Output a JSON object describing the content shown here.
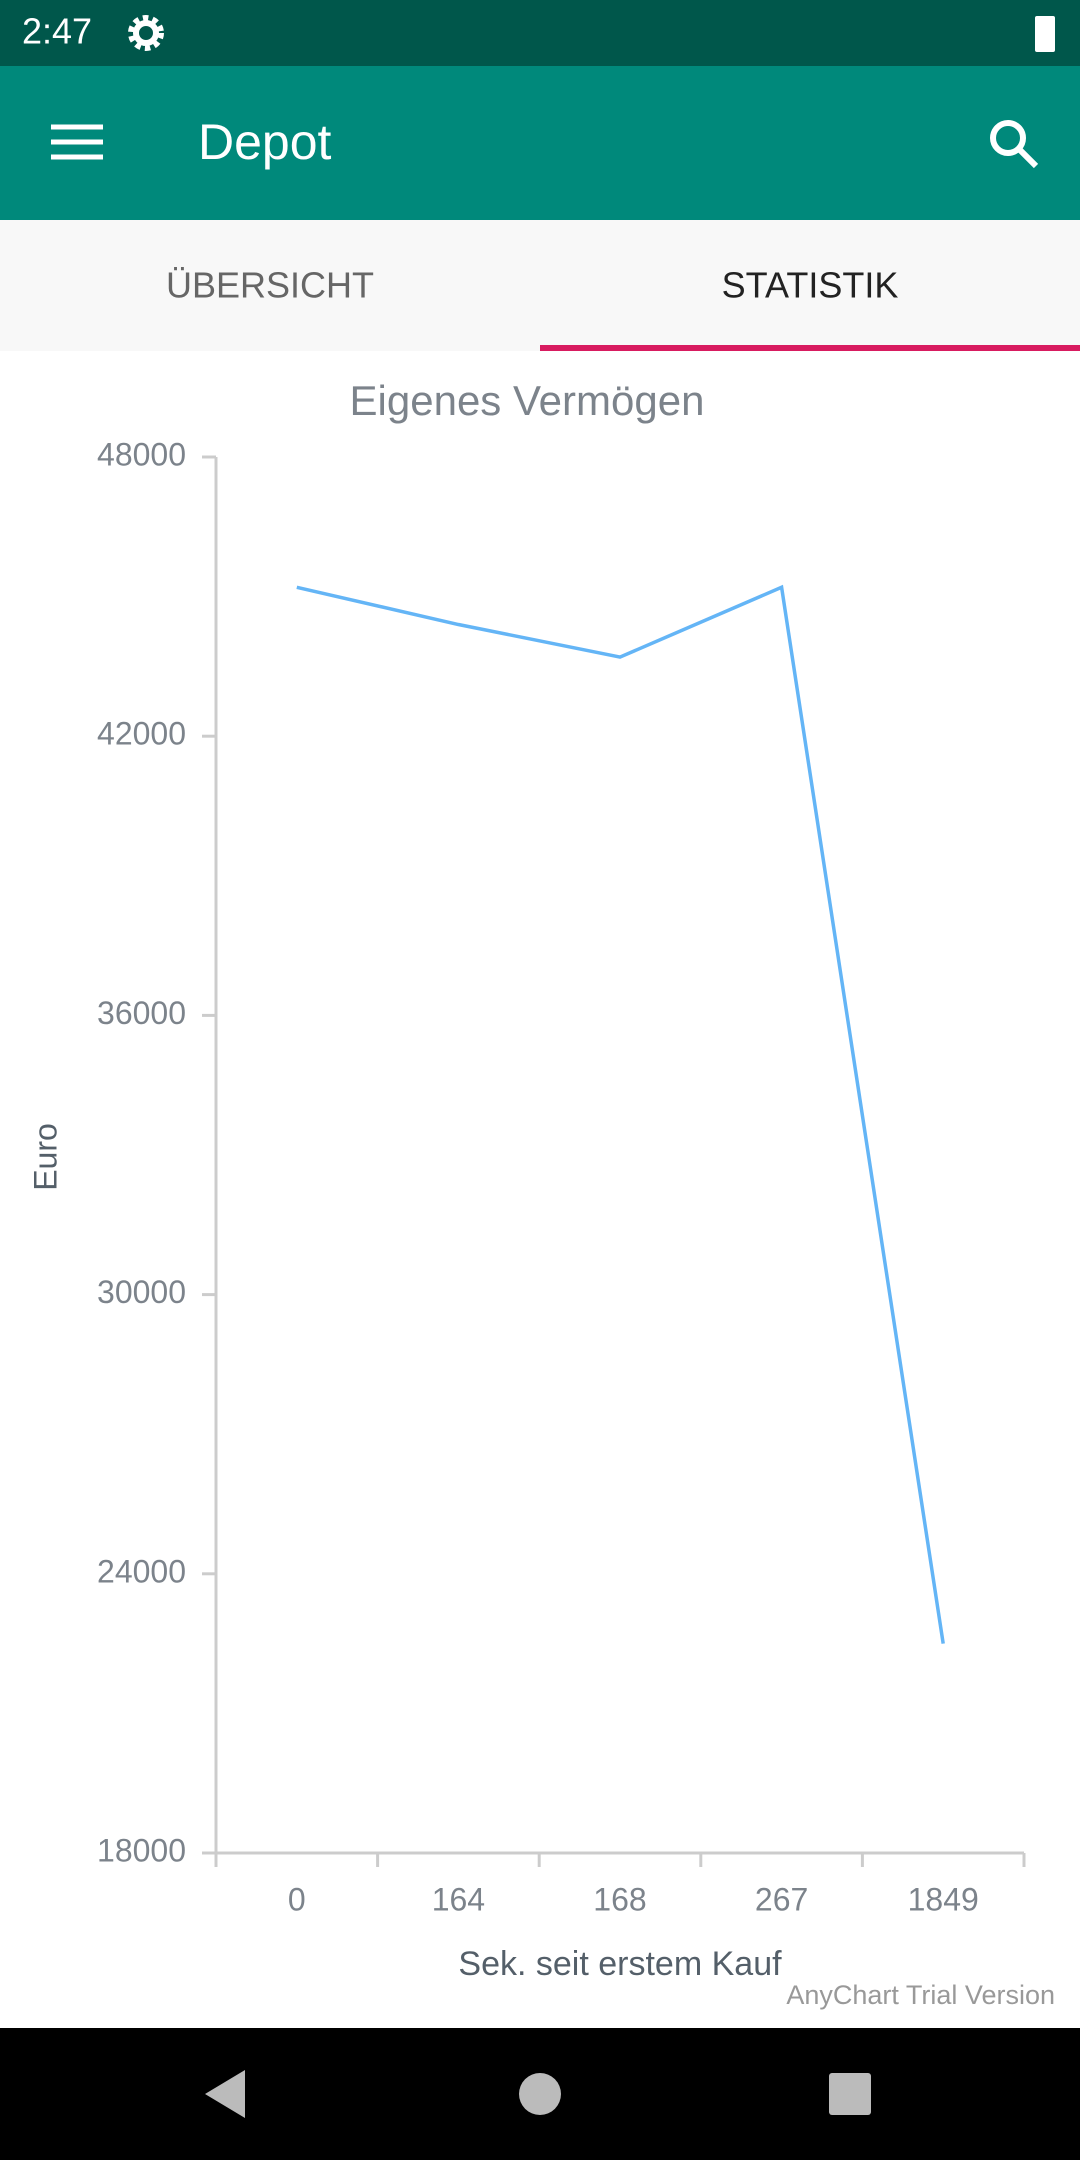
{
  "status_bar": {
    "time": "2:47"
  },
  "app_bar": {
    "title": "Depot"
  },
  "tabs": [
    "ÜBERSICHT",
    "STATISTIK"
  ],
  "chart_data": {
    "type": "line",
    "title": "Eigenes Vermögen",
    "x_label": "Sek. seit erstem Kauf",
    "y_label": "Euro",
    "categories": [
      "0",
      "164",
      "168",
      "267",
      "1849"
    ],
    "series": [
      {
        "name": "Eigenes Vermögen",
        "color": "#64b5f6",
        "values": [
          45200,
          44400,
          43700,
          45200,
          22500
        ]
      }
    ],
    "ylim": [
      18000,
      48000
    ],
    "yticks": [
      18000,
      24000,
      30000,
      36000,
      42000,
      48000
    ],
    "grid": false
  },
  "watermark": "AnyChart Trial Version"
}
